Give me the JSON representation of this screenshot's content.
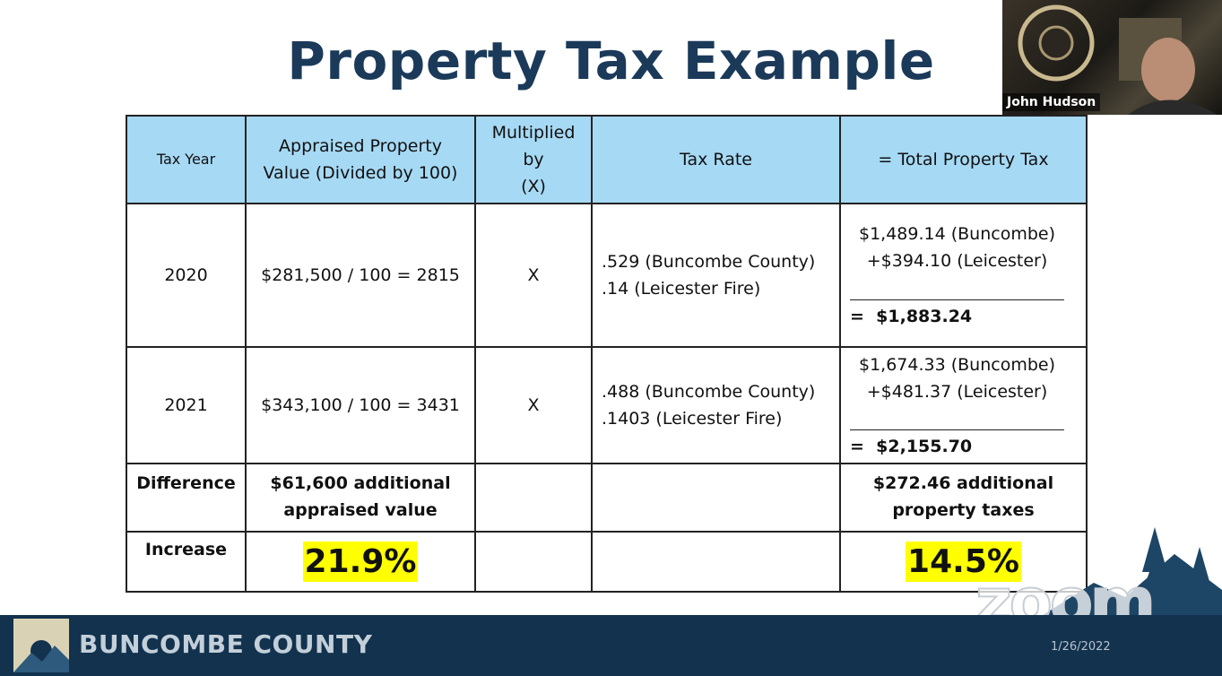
{
  "title": "Property Tax Example",
  "webcam": {
    "name": "John Hudson"
  },
  "table": {
    "header": [
      [
        "Tax Year"
      ],
      [
        "Appraised Property",
        "Value (Divided by 100)"
      ],
      [
        "Multiplied",
        "by",
        "(X)"
      ],
      [
        "Tax Rate"
      ],
      [
        "= Total Property Tax"
      ]
    ],
    "rows": [
      {
        "year": "2020",
        "appraisal": "$281,500 / 100 = 2815",
        "multiplier": "X",
        "rates": [
          ".529 (Buncombe County)",
          ".14 (Leicester Fire)"
        ],
        "totals": [
          "$1,489.14 (Buncombe)",
          "+$394.10 (Leicester)"
        ],
        "equals": "=",
        "sum": "$1,883.24"
      },
      {
        "year": "2021",
        "appraisal": "$343,100 / 100 = 3431",
        "multiplier": "X",
        "rates": [
          ".488 (Buncombe County)",
          ".1403 (Leicester Fire)"
        ],
        "totals": [
          "$1,674.33 (Buncombe)",
          "+$481.37 (Leicester)"
        ],
        "equals": "=",
        "sum": "$2,155.70"
      }
    ],
    "difference": {
      "label": "Difference",
      "appraisal": [
        "$61,600 additional",
        "appraised value"
      ],
      "total": [
        "$272.46 additional",
        "property taxes"
      ]
    },
    "increase": {
      "label": "Increase",
      "appraisal": "21.9%",
      "total": "14.5%"
    }
  },
  "footer": {
    "organization": "BUNCOMBE COUNTY",
    "date": "1/26/2022",
    "watermark": "zoom"
  }
}
